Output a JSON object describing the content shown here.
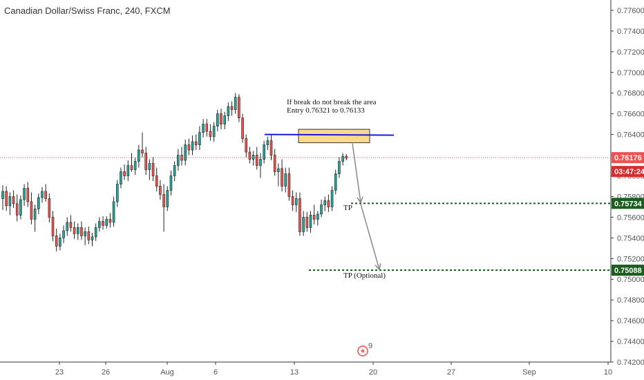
{
  "header": {
    "title": "Canadian Dollar/Swiss Franc, 240, FXCM"
  },
  "chart_data": {
    "type": "candlestick",
    "ylim": [
      0.742,
      0.777
    ],
    "y_ticks": [
      "0.77600",
      "0.77400",
      "0.77200",
      "0.77000",
      "0.76800",
      "0.76600",
      "0.76400",
      "0.76200",
      "0.76000",
      "0.75800",
      "0.75600",
      "0.75400",
      "0.75200",
      "0.75000",
      "0.74800",
      "0.74600",
      "0.74400",
      "0.74200"
    ],
    "x_ticks": [
      "23",
      "26",
      "Aug",
      "6",
      "13",
      "20",
      "27",
      "Sep",
      "10"
    ],
    "candles": [
      {
        "o": 0.7578,
        "h": 0.7591,
        "l": 0.7567,
        "c": 0.7585
      },
      {
        "o": 0.7585,
        "h": 0.759,
        "l": 0.7566,
        "c": 0.7571
      },
      {
        "o": 0.7571,
        "h": 0.7584,
        "l": 0.7562,
        "c": 0.758
      },
      {
        "o": 0.758,
        "h": 0.7586,
        "l": 0.7569,
        "c": 0.7573
      },
      {
        "o": 0.7573,
        "h": 0.7582,
        "l": 0.7556,
        "c": 0.7562
      },
      {
        "o": 0.7562,
        "h": 0.7581,
        "l": 0.7558,
        "c": 0.7577
      },
      {
        "o": 0.7577,
        "h": 0.7592,
        "l": 0.7571,
        "c": 0.7588
      },
      {
        "o": 0.7588,
        "h": 0.7594,
        "l": 0.757,
        "c": 0.7575
      },
      {
        "o": 0.7575,
        "h": 0.7584,
        "l": 0.7553,
        "c": 0.7558
      },
      {
        "o": 0.7558,
        "h": 0.7572,
        "l": 0.7546,
        "c": 0.7568
      },
      {
        "o": 0.7568,
        "h": 0.7583,
        "l": 0.7563,
        "c": 0.7579
      },
      {
        "o": 0.7579,
        "h": 0.7589,
        "l": 0.7574,
        "c": 0.7585
      },
      {
        "o": 0.7585,
        "h": 0.7592,
        "l": 0.7575,
        "c": 0.7578
      },
      {
        "o": 0.7578,
        "h": 0.7583,
        "l": 0.7555,
        "c": 0.756
      },
      {
        "o": 0.756,
        "h": 0.7566,
        "l": 0.7537,
        "c": 0.7542
      },
      {
        "o": 0.7542,
        "h": 0.7549,
        "l": 0.7527,
        "c": 0.7532
      },
      {
        "o": 0.7532,
        "h": 0.7544,
        "l": 0.7528,
        "c": 0.754
      },
      {
        "o": 0.754,
        "h": 0.7552,
        "l": 0.7535,
        "c": 0.7547
      },
      {
        "o": 0.7547,
        "h": 0.756,
        "l": 0.7542,
        "c": 0.7555
      },
      {
        "o": 0.7555,
        "h": 0.7562,
        "l": 0.7546,
        "c": 0.755
      },
      {
        "o": 0.755,
        "h": 0.7556,
        "l": 0.7539,
        "c": 0.7544
      },
      {
        "o": 0.7544,
        "h": 0.7554,
        "l": 0.7538,
        "c": 0.755
      },
      {
        "o": 0.755,
        "h": 0.7556,
        "l": 0.7538,
        "c": 0.7542
      },
      {
        "o": 0.7542,
        "h": 0.755,
        "l": 0.7533,
        "c": 0.7546
      },
      {
        "o": 0.7546,
        "h": 0.7551,
        "l": 0.7534,
        "c": 0.7538
      },
      {
        "o": 0.7538,
        "h": 0.7545,
        "l": 0.7532,
        "c": 0.7541
      },
      {
        "o": 0.7541,
        "h": 0.7554,
        "l": 0.7537,
        "c": 0.755
      },
      {
        "o": 0.755,
        "h": 0.756,
        "l": 0.7546,
        "c": 0.7556
      },
      {
        "o": 0.7556,
        "h": 0.7561,
        "l": 0.7548,
        "c": 0.7552
      },
      {
        "o": 0.7552,
        "h": 0.7561,
        "l": 0.7549,
        "c": 0.7558
      },
      {
        "o": 0.7558,
        "h": 0.7564,
        "l": 0.755,
        "c": 0.7555
      },
      {
        "o": 0.7555,
        "h": 0.758,
        "l": 0.7551,
        "c": 0.7575
      },
      {
        "o": 0.7575,
        "h": 0.7596,
        "l": 0.757,
        "c": 0.7592
      },
      {
        "o": 0.7592,
        "h": 0.7608,
        "l": 0.7588,
        "c": 0.7604
      },
      {
        "o": 0.7604,
        "h": 0.7611,
        "l": 0.7596,
        "c": 0.76
      },
      {
        "o": 0.76,
        "h": 0.7615,
        "l": 0.7595,
        "c": 0.761
      },
      {
        "o": 0.761,
        "h": 0.7622,
        "l": 0.7604,
        "c": 0.7606
      },
      {
        "o": 0.7606,
        "h": 0.7618,
        "l": 0.7601,
        "c": 0.7614
      },
      {
        "o": 0.7614,
        "h": 0.763,
        "l": 0.7608,
        "c": 0.7625
      },
      {
        "o": 0.7625,
        "h": 0.7642,
        "l": 0.7618,
        "c": 0.7622
      },
      {
        "o": 0.7622,
        "h": 0.7628,
        "l": 0.7601,
        "c": 0.7606
      },
      {
        "o": 0.7606,
        "h": 0.7616,
        "l": 0.7596,
        "c": 0.7612
      },
      {
        "o": 0.7612,
        "h": 0.7618,
        "l": 0.7595,
        "c": 0.76
      },
      {
        "o": 0.76,
        "h": 0.7608,
        "l": 0.7585,
        "c": 0.759
      },
      {
        "o": 0.759,
        "h": 0.7596,
        "l": 0.7577,
        "c": 0.7582
      },
      {
        "o": 0.7582,
        "h": 0.7592,
        "l": 0.7546,
        "c": 0.757
      },
      {
        "o": 0.757,
        "h": 0.759,
        "l": 0.7566,
        "c": 0.7586
      },
      {
        "o": 0.7586,
        "h": 0.7605,
        "l": 0.7581,
        "c": 0.76
      },
      {
        "o": 0.76,
        "h": 0.7614,
        "l": 0.7595,
        "c": 0.761
      },
      {
        "o": 0.761,
        "h": 0.7626,
        "l": 0.7605,
        "c": 0.762
      },
      {
        "o": 0.762,
        "h": 0.7628,
        "l": 0.761,
        "c": 0.7615
      },
      {
        "o": 0.7615,
        "h": 0.7635,
        "l": 0.761,
        "c": 0.763
      },
      {
        "o": 0.763,
        "h": 0.7636,
        "l": 0.762,
        "c": 0.7625
      },
      {
        "o": 0.7625,
        "h": 0.7639,
        "l": 0.762,
        "c": 0.7633
      },
      {
        "o": 0.7633,
        "h": 0.764,
        "l": 0.7625,
        "c": 0.763
      },
      {
        "o": 0.763,
        "h": 0.7648,
        "l": 0.7625,
        "c": 0.7642
      },
      {
        "o": 0.7642,
        "h": 0.7655,
        "l": 0.7637,
        "c": 0.765
      },
      {
        "o": 0.765,
        "h": 0.7655,
        "l": 0.7638,
        "c": 0.7643
      },
      {
        "o": 0.7643,
        "h": 0.765,
        "l": 0.7634,
        "c": 0.7638
      },
      {
        "o": 0.7638,
        "h": 0.7652,
        "l": 0.7633,
        "c": 0.7648
      },
      {
        "o": 0.7648,
        "h": 0.7664,
        "l": 0.7643,
        "c": 0.766
      },
      {
        "o": 0.766,
        "h": 0.7665,
        "l": 0.7645,
        "c": 0.765
      },
      {
        "o": 0.765,
        "h": 0.7662,
        "l": 0.7645,
        "c": 0.7658
      },
      {
        "o": 0.7658,
        "h": 0.7671,
        "l": 0.7653,
        "c": 0.7667
      },
      {
        "o": 0.7667,
        "h": 0.7672,
        "l": 0.7658,
        "c": 0.7664
      },
      {
        "o": 0.7664,
        "h": 0.768,
        "l": 0.766,
        "c": 0.7676
      },
      {
        "o": 0.7676,
        "h": 0.7679,
        "l": 0.7652,
        "c": 0.7656
      },
      {
        "o": 0.7656,
        "h": 0.766,
        "l": 0.7632,
        "c": 0.7636
      },
      {
        "o": 0.7636,
        "h": 0.764,
        "l": 0.7618,
        "c": 0.7623
      },
      {
        "o": 0.7623,
        "h": 0.7628,
        "l": 0.7612,
        "c": 0.7616
      },
      {
        "o": 0.7616,
        "h": 0.7624,
        "l": 0.761,
        "c": 0.762
      },
      {
        "o": 0.762,
        "h": 0.7628,
        "l": 0.7606,
        "c": 0.761
      },
      {
        "o": 0.761,
        "h": 0.7622,
        "l": 0.7598,
        "c": 0.7616
      },
      {
        "o": 0.7616,
        "h": 0.7634,
        "l": 0.7612,
        "c": 0.763
      },
      {
        "o": 0.763,
        "h": 0.7638,
        "l": 0.7625,
        "c": 0.7634
      },
      {
        "o": 0.7634,
        "h": 0.764,
        "l": 0.7615,
        "c": 0.762
      },
      {
        "o": 0.762,
        "h": 0.7626,
        "l": 0.76,
        "c": 0.7604
      },
      {
        "o": 0.7604,
        "h": 0.7612,
        "l": 0.759,
        "c": 0.7607
      },
      {
        "o": 0.7607,
        "h": 0.7616,
        "l": 0.7585,
        "c": 0.759
      },
      {
        "o": 0.759,
        "h": 0.7608,
        "l": 0.7584,
        "c": 0.7602
      },
      {
        "o": 0.7602,
        "h": 0.7608,
        "l": 0.7576,
        "c": 0.758
      },
      {
        "o": 0.758,
        "h": 0.7586,
        "l": 0.7566,
        "c": 0.7572
      },
      {
        "o": 0.7572,
        "h": 0.7584,
        "l": 0.7565,
        "c": 0.7578
      },
      {
        "o": 0.7578,
        "h": 0.7584,
        "l": 0.7542,
        "c": 0.7546
      },
      {
        "o": 0.7546,
        "h": 0.7566,
        "l": 0.7542,
        "c": 0.756
      },
      {
        "o": 0.756,
        "h": 0.7565,
        "l": 0.7546,
        "c": 0.755
      },
      {
        "o": 0.755,
        "h": 0.7566,
        "l": 0.7545,
        "c": 0.7562
      },
      {
        "o": 0.7562,
        "h": 0.7572,
        "l": 0.7553,
        "c": 0.7558
      },
      {
        "o": 0.7558,
        "h": 0.7566,
        "l": 0.7552,
        "c": 0.7563
      },
      {
        "o": 0.7563,
        "h": 0.7577,
        "l": 0.756,
        "c": 0.7572
      },
      {
        "o": 0.7572,
        "h": 0.758,
        "l": 0.7566,
        "c": 0.7576
      },
      {
        "o": 0.7576,
        "h": 0.7582,
        "l": 0.7565,
        "c": 0.757
      },
      {
        "o": 0.757,
        "h": 0.759,
        "l": 0.7566,
        "c": 0.7586
      },
      {
        "o": 0.7586,
        "h": 0.7606,
        "l": 0.7582,
        "c": 0.7602
      },
      {
        "o": 0.7602,
        "h": 0.7618,
        "l": 0.7598,
        "c": 0.7614
      },
      {
        "o": 0.7614,
        "h": 0.7622,
        "l": 0.761,
        "c": 0.7619
      },
      {
        "o": 0.7619,
        "h": 0.7621,
        "l": 0.7615,
        "c": 0.7617
      }
    ],
    "last_price": 0.76176,
    "last_price_label": "0.76176",
    "countdown_label": "03:47:24",
    "levels": [
      {
        "price": 0.75734,
        "label": "0.75734"
      },
      {
        "price": 0.75088,
        "label": "0.75088"
      }
    ],
    "entry_zone": {
      "top": 0.7645,
      "bottom": 0.7632
    },
    "resistance_line": {
      "price": 0.764
    },
    "annotations": {
      "line1": "If break do not break the area",
      "line2": "Entry 0.76321 to 0.76133",
      "tp1": "TP",
      "tp2": "TP (Optional)"
    },
    "colors": {
      "up": "#26a69a",
      "down": "#ef5350",
      "price_tag": "#ef5350",
      "countdown_tag": "#d32f2f",
      "level": "#1b5e20",
      "zone_fill": "#f9d98c",
      "zone_border": "#333333",
      "resistance": "#1a1adb",
      "arrow": "#888888"
    },
    "logo_badge": "9"
  }
}
